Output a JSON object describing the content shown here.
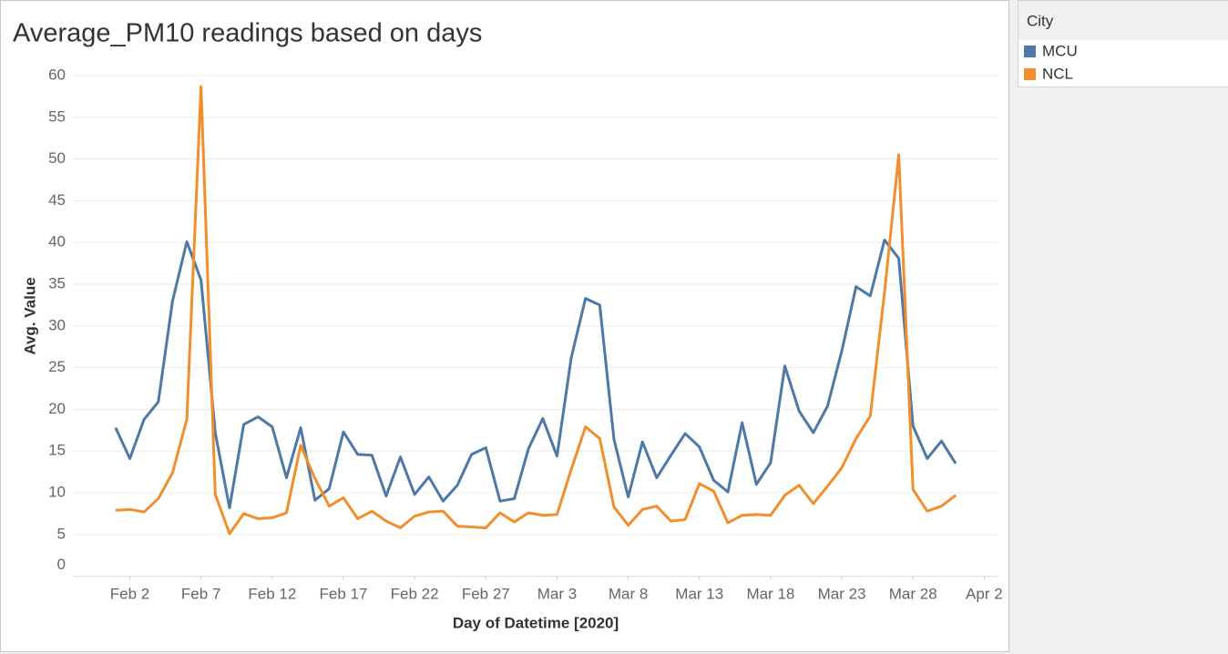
{
  "chart_data": {
    "type": "line",
    "title": "Average_PM10 readings based on days",
    "x_label": "Day of Datetime [2020]",
    "y_label": "Avg. Value",
    "legend_title": "City",
    "legend": "right",
    "grid": true,
    "x": [
      "2020-02-01",
      "2020-02-02",
      "2020-02-03",
      "2020-02-04",
      "2020-02-05",
      "2020-02-06",
      "2020-02-07",
      "2020-02-08",
      "2020-02-09",
      "2020-02-10",
      "2020-02-11",
      "2020-02-12",
      "2020-02-13",
      "2020-02-14",
      "2020-02-15",
      "2020-02-16",
      "2020-02-17",
      "2020-02-18",
      "2020-02-19",
      "2020-02-20",
      "2020-02-21",
      "2020-02-22",
      "2020-02-23",
      "2020-02-24",
      "2020-02-25",
      "2020-02-26",
      "2020-02-27",
      "2020-02-28",
      "2020-02-29",
      "2020-03-01",
      "2020-03-02",
      "2020-03-03",
      "2020-03-04",
      "2020-03-05",
      "2020-03-06",
      "2020-03-07",
      "2020-03-08",
      "2020-03-09",
      "2020-03-10",
      "2020-03-11",
      "2020-03-12",
      "2020-03-13",
      "2020-03-14",
      "2020-03-15",
      "2020-03-16",
      "2020-03-17",
      "2020-03-18",
      "2020-03-19",
      "2020-03-20",
      "2020-03-21",
      "2020-03-22",
      "2020-03-23",
      "2020-03-24",
      "2020-03-25",
      "2020-03-26",
      "2020-03-27",
      "2020-03-28",
      "2020-03-29",
      "2020-03-30",
      "2020-03-31"
    ],
    "series": [
      {
        "name": "MCU",
        "color": "#4e79a7",
        "values": [
          17.8,
          14.1,
          18.8,
          20.9,
          33,
          40.1,
          35.5,
          17.2,
          8.2,
          18.2,
          19.1,
          17.9,
          11.8,
          17.8,
          9.1,
          10.5,
          17.3,
          14.6,
          14.5,
          9.6,
          14.3,
          9.8,
          11.9,
          9.0,
          10.9,
          14.6,
          15.4,
          9.0,
          9.3,
          15.3,
          18.9,
          14.4,
          26.2,
          33.3,
          32.5,
          16.4,
          9.5,
          16.1,
          11.8,
          14.5,
          17.1,
          15.5,
          11.5,
          10.1,
          18.4,
          11.0,
          13.6,
          25.2,
          19.8,
          17.2,
          20.4,
          27,
          34.7,
          33.6,
          40.3,
          38.1,
          18.0,
          14.1,
          16.2,
          13.5
        ]
      },
      {
        "name": "NCL",
        "color": "#f28e2b",
        "values": [
          7.9,
          8.0,
          7.7,
          9.3,
          12.4,
          18.8,
          58.7,
          9.8,
          5.1,
          7.5,
          6.9,
          7.0,
          7.6,
          15.7,
          11.7,
          8.4,
          9.4,
          6.9,
          7.8,
          6.6,
          5.8,
          7.2,
          7.7,
          7.8,
          6.0,
          5.9,
          5.8,
          7.6,
          6.5,
          7.6,
          7.3,
          7.4,
          12.8,
          17.9,
          16.5,
          8.3,
          6.1,
          8.0,
          8.4,
          6.6,
          6.8,
          11.1,
          10.2,
          6.4,
          7.3,
          7.4,
          7.3,
          9.7,
          10.9,
          8.7,
          10.8,
          13.0,
          16.5,
          19.2,
          34,
          50.5,
          10.4,
          7.8,
          8.4,
          9.7
        ]
      }
    ],
    "xlim": [
      "2020-01-29",
      "2020-04-03"
    ],
    "xticks": [
      {
        "value": "2020-02-02",
        "label": "Feb 2"
      },
      {
        "value": "2020-02-07",
        "label": "Feb 7"
      },
      {
        "value": "2020-02-12",
        "label": "Feb 12"
      },
      {
        "value": "2020-02-17",
        "label": "Feb 17"
      },
      {
        "value": "2020-02-22",
        "label": "Feb 22"
      },
      {
        "value": "2020-02-27",
        "label": "Feb 27"
      },
      {
        "value": "2020-03-03",
        "label": "Mar 3"
      },
      {
        "value": "2020-03-08",
        "label": "Mar 8"
      },
      {
        "value": "2020-03-13",
        "label": "Mar 13"
      },
      {
        "value": "2020-03-18",
        "label": "Mar 18"
      },
      {
        "value": "2020-03-23",
        "label": "Mar 23"
      },
      {
        "value": "2020-03-28",
        "label": "Mar 28"
      },
      {
        "value": "2020-04-02",
        "label": "Apr 2"
      }
    ],
    "ylim": [
      0,
      61.5
    ],
    "yticks": [
      0,
      5,
      10,
      15,
      20,
      25,
      30,
      35,
      40,
      45,
      50,
      55,
      60
    ]
  }
}
